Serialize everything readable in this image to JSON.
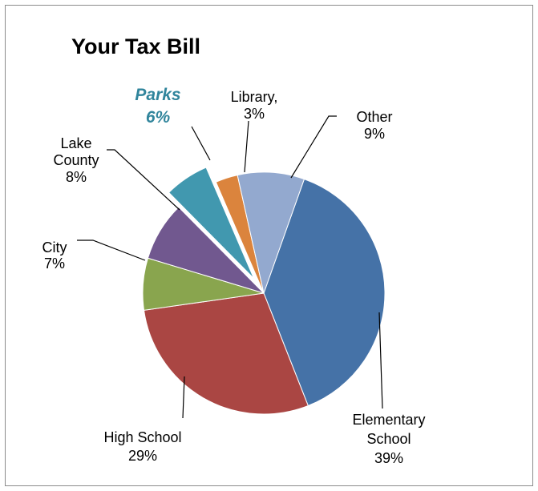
{
  "chart_data": {
    "type": "pie",
    "title": "Your Tax Bill",
    "start_angle_deg": 19.5,
    "direction": "clockwise",
    "slices": [
      {
        "name": "Elementary School",
        "lines": [
          "Elementary",
          "School"
        ],
        "pct_label": "39%",
        "value": 39,
        "color": "#4572a7",
        "exploded": false
      },
      {
        "name": "High School",
        "lines": [
          "High School"
        ],
        "pct_label": "29%",
        "value": 29,
        "color": "#aa4643",
        "exploded": false
      },
      {
        "name": "City",
        "lines": [
          "City"
        ],
        "pct_label": "7%",
        "value": 7,
        "color": "#89a54e",
        "exploded": false
      },
      {
        "name": "Lake County",
        "lines": [
          "Lake",
          "County"
        ],
        "pct_label": "8%",
        "value": 8,
        "color": "#71588f",
        "exploded": false
      },
      {
        "name": "Parks",
        "lines": [
          "Parks"
        ],
        "pct_label": "6%",
        "value": 6,
        "color": "#4198af",
        "exploded": true,
        "highlight": true
      },
      {
        "name": "Library",
        "lines": [
          "Library,"
        ],
        "pct_label": "3%",
        "value": 3,
        "color": "#db843d",
        "exploded": false
      },
      {
        "name": "Other",
        "lines": [
          "Other"
        ],
        "pct_label": "9%",
        "value": 9,
        "color": "#93a9cf",
        "exploded": false
      }
    ]
  }
}
